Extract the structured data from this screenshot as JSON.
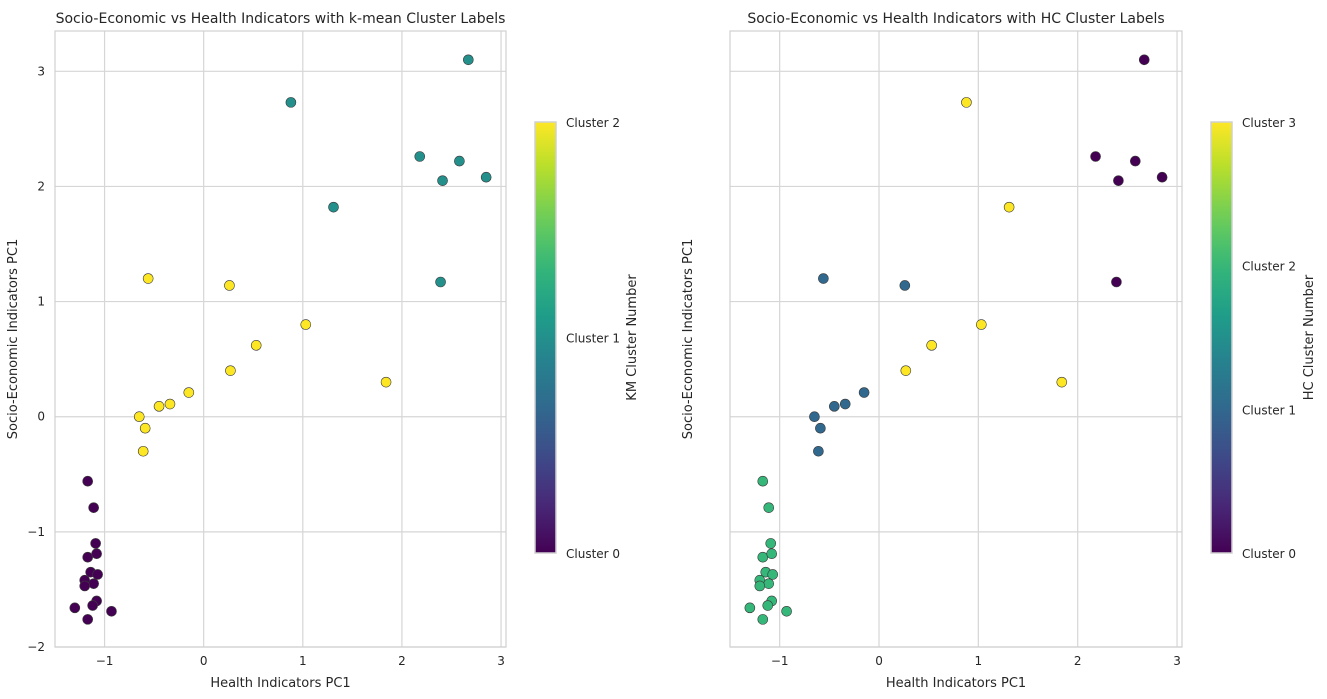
{
  "chart_data": [
    {
      "type": "scatter",
      "title": "Socio-Economic vs Health Indicators with k-mean Cluster Labels",
      "xlabel": "Health Indicators PC1",
      "ylabel": "Socio-Economic Indicators PC1",
      "xlim": [
        -1.5,
        3.05
      ],
      "ylim": [
        -2.0,
        3.35
      ],
      "xticks": [
        -1,
        0,
        1,
        2,
        3
      ],
      "yticks": [
        -2,
        -1,
        0,
        1,
        2,
        3
      ],
      "xtick_labels": [
        "−1",
        "0",
        "1",
        "2",
        "3"
      ],
      "ytick_labels": [
        "−2",
        "−1",
        "0",
        "1",
        "2",
        "3"
      ],
      "grid": true,
      "colorbar": {
        "label": "KM Cluster Number",
        "ticks": [
          0,
          1,
          2
        ],
        "tick_labels": [
          "Cluster 0",
          "Cluster 1",
          "Cluster 2"
        ],
        "range": [
          0,
          2
        ],
        "colormap": "viridis"
      },
      "points": [
        {
          "x": 0.88,
          "y": 2.73,
          "cluster": 1
        },
        {
          "x": 2.67,
          "y": 3.1,
          "cluster": 1
        },
        {
          "x": 2.18,
          "y": 2.26,
          "cluster": 1
        },
        {
          "x": 2.58,
          "y": 2.22,
          "cluster": 1
        },
        {
          "x": 2.41,
          "y": 2.05,
          "cluster": 1
        },
        {
          "x": 2.85,
          "y": 2.08,
          "cluster": 1
        },
        {
          "x": 1.31,
          "y": 1.82,
          "cluster": 1
        },
        {
          "x": 2.39,
          "y": 1.17,
          "cluster": 1
        },
        {
          "x": -0.56,
          "y": 1.2,
          "cluster": 2
        },
        {
          "x": 0.26,
          "y": 1.14,
          "cluster": 2
        },
        {
          "x": 1.03,
          "y": 0.8,
          "cluster": 2
        },
        {
          "x": 0.53,
          "y": 0.62,
          "cluster": 2
        },
        {
          "x": 0.27,
          "y": 0.4,
          "cluster": 2
        },
        {
          "x": 1.84,
          "y": 0.3,
          "cluster": 2
        },
        {
          "x": -0.15,
          "y": 0.21,
          "cluster": 2
        },
        {
          "x": -0.34,
          "y": 0.11,
          "cluster": 2
        },
        {
          "x": -0.45,
          "y": 0.09,
          "cluster": 2
        },
        {
          "x": -0.65,
          "y": 0.0,
          "cluster": 2
        },
        {
          "x": -0.59,
          "y": -0.1,
          "cluster": 2
        },
        {
          "x": -0.61,
          "y": -0.3,
          "cluster": 2
        },
        {
          "x": -1.17,
          "y": -0.56,
          "cluster": 0
        },
        {
          "x": -1.11,
          "y": -0.79,
          "cluster": 0
        },
        {
          "x": -1.09,
          "y": -1.1,
          "cluster": 0
        },
        {
          "x": -1.17,
          "y": -1.22,
          "cluster": 0
        },
        {
          "x": -1.08,
          "y": -1.19,
          "cluster": 0
        },
        {
          "x": -1.14,
          "y": -1.35,
          "cluster": 0
        },
        {
          "x": -1.07,
          "y": -1.37,
          "cluster": 0
        },
        {
          "x": -1.2,
          "y": -1.42,
          "cluster": 0
        },
        {
          "x": -1.11,
          "y": -1.45,
          "cluster": 0
        },
        {
          "x": -1.2,
          "y": -1.47,
          "cluster": 0
        },
        {
          "x": -1.08,
          "y": -1.6,
          "cluster": 0
        },
        {
          "x": -1.12,
          "y": -1.64,
          "cluster": 0
        },
        {
          "x": -1.3,
          "y": -1.66,
          "cluster": 0
        },
        {
          "x": -0.93,
          "y": -1.69,
          "cluster": 0
        },
        {
          "x": -1.17,
          "y": -1.76,
          "cluster": 0
        }
      ]
    },
    {
      "type": "scatter",
      "title": "Socio-Economic vs Health Indicators with HC Cluster Labels",
      "xlabel": "Health Indicators PC1",
      "ylabel": "Socio-Economic Indicators PC1",
      "xlim": [
        -1.5,
        3.05
      ],
      "ylim": [
        -2.0,
        3.35
      ],
      "xticks": [
        -1,
        0,
        1,
        2,
        3
      ],
      "yticks": [
        -2,
        -1,
        0,
        1,
        2,
        3
      ],
      "xtick_labels": [
        "−1",
        "0",
        "1",
        "2",
        "3"
      ],
      "ytick_labels": [],
      "grid": true,
      "colorbar": {
        "label": "HC Cluster Number",
        "ticks": [
          0,
          1,
          2,
          3
        ],
        "tick_labels": [
          "Cluster 0",
          "Cluster 1",
          "Cluster 2",
          "Cluster 3"
        ],
        "range": [
          0,
          3
        ],
        "colormap": "viridis"
      },
      "points": [
        {
          "x": 0.88,
          "y": 2.73,
          "cluster": 3
        },
        {
          "x": 2.67,
          "y": 3.1,
          "cluster": 0
        },
        {
          "x": 2.18,
          "y": 2.26,
          "cluster": 0
        },
        {
          "x": 2.58,
          "y": 2.22,
          "cluster": 0
        },
        {
          "x": 2.41,
          "y": 2.05,
          "cluster": 0
        },
        {
          "x": 2.85,
          "y": 2.08,
          "cluster": 0
        },
        {
          "x": 1.31,
          "y": 1.82,
          "cluster": 3
        },
        {
          "x": 2.39,
          "y": 1.17,
          "cluster": 0
        },
        {
          "x": -0.56,
          "y": 1.2,
          "cluster": 1
        },
        {
          "x": 0.26,
          "y": 1.14,
          "cluster": 1
        },
        {
          "x": 1.03,
          "y": 0.8,
          "cluster": 3
        },
        {
          "x": 0.53,
          "y": 0.62,
          "cluster": 3
        },
        {
          "x": 0.27,
          "y": 0.4,
          "cluster": 3
        },
        {
          "x": 1.84,
          "y": 0.3,
          "cluster": 3
        },
        {
          "x": -0.15,
          "y": 0.21,
          "cluster": 1
        },
        {
          "x": -0.34,
          "y": 0.11,
          "cluster": 1
        },
        {
          "x": -0.45,
          "y": 0.09,
          "cluster": 1
        },
        {
          "x": -0.65,
          "y": 0.0,
          "cluster": 1
        },
        {
          "x": -0.59,
          "y": -0.1,
          "cluster": 1
        },
        {
          "x": -0.61,
          "y": -0.3,
          "cluster": 1
        },
        {
          "x": -1.17,
          "y": -0.56,
          "cluster": 2
        },
        {
          "x": -1.11,
          "y": -0.79,
          "cluster": 2
        },
        {
          "x": -1.09,
          "y": -1.1,
          "cluster": 2
        },
        {
          "x": -1.17,
          "y": -1.22,
          "cluster": 2
        },
        {
          "x": -1.08,
          "y": -1.19,
          "cluster": 2
        },
        {
          "x": -1.14,
          "y": -1.35,
          "cluster": 2
        },
        {
          "x": -1.07,
          "y": -1.37,
          "cluster": 2
        },
        {
          "x": -1.2,
          "y": -1.42,
          "cluster": 2
        },
        {
          "x": -1.11,
          "y": -1.45,
          "cluster": 2
        },
        {
          "x": -1.2,
          "y": -1.47,
          "cluster": 2
        },
        {
          "x": -1.08,
          "y": -1.6,
          "cluster": 2
        },
        {
          "x": -1.12,
          "y": -1.64,
          "cluster": 2
        },
        {
          "x": -1.3,
          "y": -1.66,
          "cluster": 2
        },
        {
          "x": -0.93,
          "y": -1.69,
          "cluster": 2
        },
        {
          "x": -1.17,
          "y": -1.76,
          "cluster": 2
        }
      ]
    }
  ]
}
